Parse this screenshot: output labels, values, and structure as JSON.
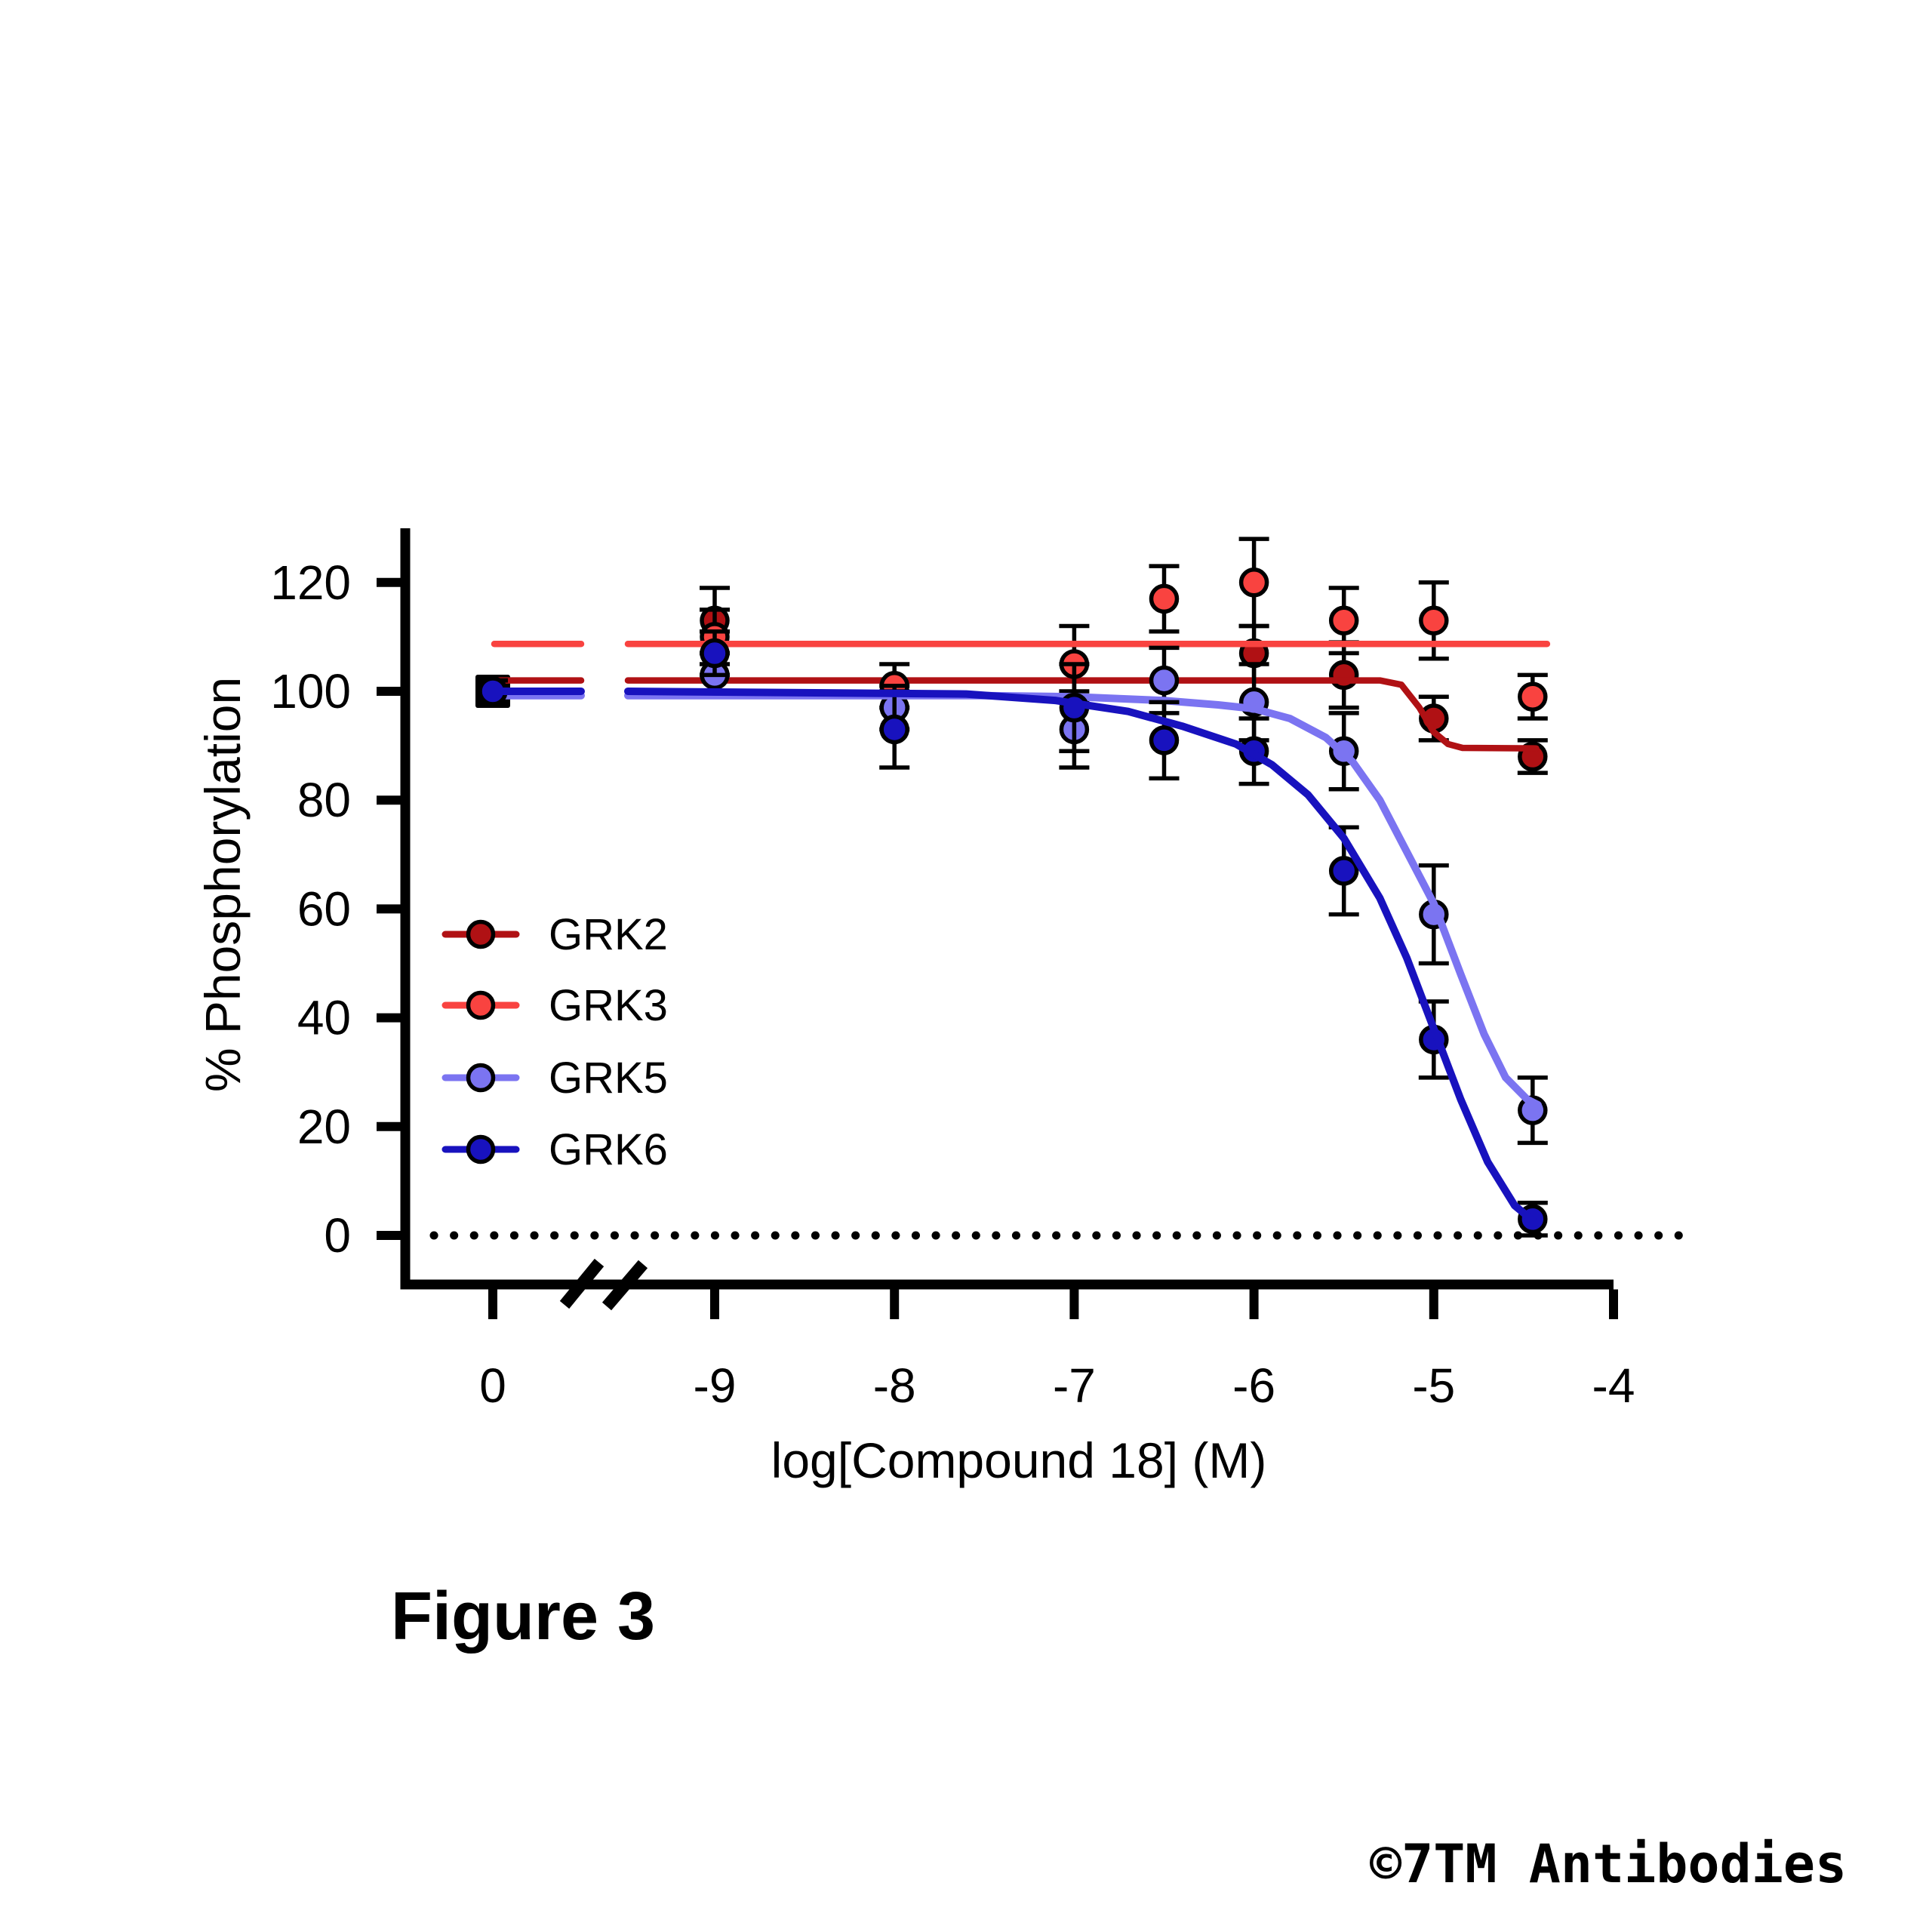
{
  "figure_label": "Figure 3",
  "watermark": "©7TM Antibodies",
  "chart_data": {
    "type": "scatter",
    "title": "",
    "xlabel": "log[Compound 18] (M)",
    "ylabel": "% Phosphorylation",
    "x_axis_note": "broken x-axis: isolated control position labeled 0, then log scale -9 to -4",
    "x_tick_labels": [
      "0",
      "-9",
      "-8",
      "-7",
      "-6",
      "-5",
      "-4"
    ],
    "x_tick_logs": [
      null,
      -9,
      -8,
      -7,
      -6,
      -5,
      -4
    ],
    "y_ticks": [
      0,
      20,
      40,
      60,
      80,
      100,
      120
    ],
    "ylim": [
      0,
      130
    ],
    "grid": false,
    "zero_baseline": "dotted",
    "legend_position": "inside-left-middle",
    "x_logs": [
      -9,
      -8,
      -7,
      -6.5,
      -6,
      -5.5,
      -5,
      -4.45
    ],
    "series": [
      {
        "name": "GRK2",
        "color": "#B01114",
        "control": {
          "label": "0",
          "value": 100,
          "error": 2
        },
        "values": [
          113,
          null,
          null,
          null,
          107,
          103,
          95,
          88
        ],
        "errors": [
          6,
          0,
          0,
          0,
          5,
          6,
          4,
          3
        ],
        "hidden_note": "points at -8, -7, -6.5 hidden behind GRK3 markers",
        "fit_control_level": 102,
        "fit": [
          [
            -9.82,
            102
          ],
          [
            -6.0,
            102
          ],
          [
            -5.3,
            102
          ],
          [
            -5.18,
            101.2
          ],
          [
            -5.08,
            97
          ],
          [
            -5.0,
            92.5
          ],
          [
            -4.92,
            90.3
          ],
          [
            -4.84,
            89.6
          ],
          [
            -4.43,
            89.5
          ]
        ]
      },
      {
        "name": "GRK3",
        "color": "#F94340",
        "control": {
          "label": "0",
          "value": 100,
          "error": 2
        },
        "values": [
          110,
          101,
          105,
          117,
          120,
          113,
          113,
          99
        ],
        "errors": [
          5,
          4,
          7,
          6,
          8,
          6,
          7,
          4
        ],
        "fit_control_level": 108.7,
        "fit": [
          [
            -9.82,
            108.7
          ],
          [
            -4.37,
            108.7
          ]
        ]
      },
      {
        "name": "GRK5",
        "color": "#7B74F1",
        "control": {
          "label": "0",
          "value": 100,
          "error": 2
        },
        "values": [
          103,
          97,
          93,
          102,
          98,
          89,
          59,
          23
        ],
        "errors": [
          4,
          4,
          7,
          6,
          7,
          7,
          9,
          6
        ],
        "fit_control_level": 99.2,
        "fit": [
          [
            -9.82,
            99.2
          ],
          [
            -7.5,
            99.2
          ],
          [
            -7,
            99
          ],
          [
            -6.5,
            98.3
          ],
          [
            -6.2,
            97.5
          ],
          [
            -6,
            96.8
          ],
          [
            -5.8,
            95
          ],
          [
            -5.6,
            91.5
          ],
          [
            -5.45,
            87
          ],
          [
            -5.3,
            80
          ],
          [
            -5.15,
            70.5
          ],
          [
            -5,
            61
          ],
          [
            -4.85,
            48
          ],
          [
            -4.72,
            37
          ],
          [
            -4.6,
            29
          ],
          [
            -4.48,
            25
          ],
          [
            -4.42,
            24
          ]
        ]
      },
      {
        "name": "GRK6",
        "color": "#1812BE",
        "control": {
          "label": "0",
          "value": 100,
          "error": 2
        },
        "values": [
          107,
          93,
          97,
          91,
          89,
          67,
          36,
          3
        ],
        "errors": [
          4,
          7,
          8,
          7,
          6,
          8,
          7,
          3
        ],
        "fit_control_level": 100,
        "fit": [
          [
            -9.82,
            100
          ],
          [
            -7.6,
            99.5
          ],
          [
            -7.1,
            98.3
          ],
          [
            -6.7,
            96.3
          ],
          [
            -6.4,
            93.6
          ],
          [
            -6.1,
            90.3
          ],
          [
            -5.9,
            86.5
          ],
          [
            -5.7,
            81
          ],
          [
            -5.5,
            73
          ],
          [
            -5.3,
            62
          ],
          [
            -5.15,
            51
          ],
          [
            -5.0,
            38
          ],
          [
            -4.85,
            25
          ],
          [
            -4.7,
            13.5
          ],
          [
            -4.55,
            5.5
          ],
          [
            -4.44,
            2.5
          ]
        ]
      }
    ]
  }
}
